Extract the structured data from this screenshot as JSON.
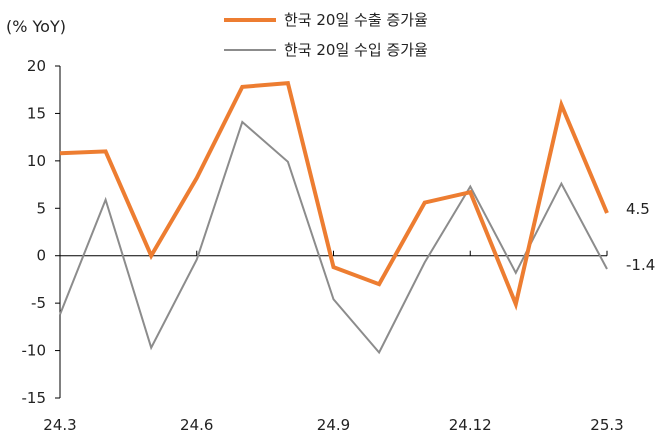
{
  "chart_data": {
    "type": "line",
    "y_unit_label": "(% YoY)",
    "x": [
      "24.3",
      "24.4",
      "24.5",
      "24.6",
      "24.7",
      "24.8",
      "24.9",
      "24.10",
      "24.11",
      "24.12",
      "25.1",
      "25.2",
      "25.3"
    ],
    "x_tick_labels": [
      "24.3",
      "24.6",
      "24.9",
      "24.12",
      "25.3"
    ],
    "y_ticks": [
      20,
      15,
      10,
      5,
      0,
      -5,
      -10,
      -15
    ],
    "ylim": [
      -15,
      20
    ],
    "grid": false,
    "legend_position": "top",
    "series": [
      {
        "name": "한국 20일 수출 증가율",
        "color": "#ED7D31",
        "values": [
          10.8,
          11.0,
          0.0,
          8.2,
          17.8,
          18.2,
          -1.2,
          -3.0,
          5.6,
          6.7,
          -5.1,
          15.9,
          4.5
        ],
        "end_label": "4.5"
      },
      {
        "name": "한국 20일 수입 증가율",
        "color": "#8C8C8C",
        "values": [
          -6.2,
          5.9,
          -9.7,
          -0.4,
          14.1,
          9.9,
          -4.6,
          -10.2,
          -0.7,
          7.3,
          -1.8,
          7.6,
          -1.4
        ],
        "end_label": "-1.4"
      }
    ]
  }
}
